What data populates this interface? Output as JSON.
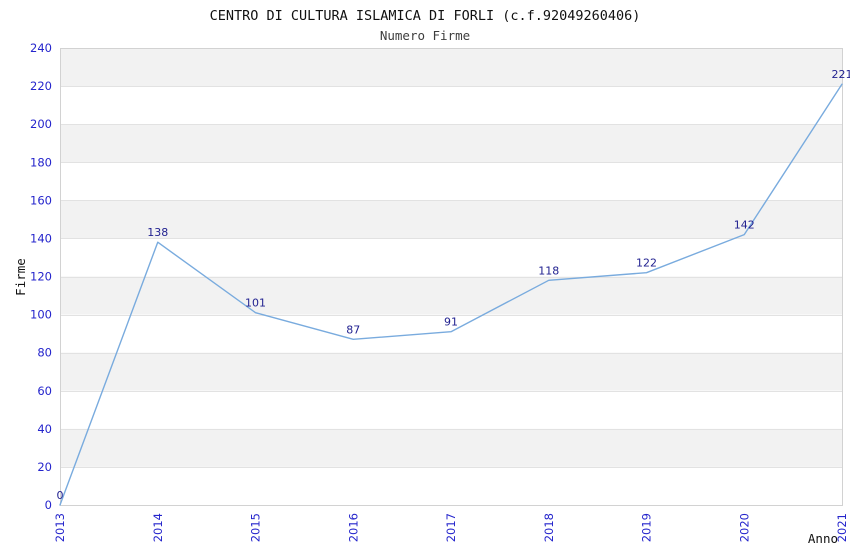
{
  "page": {
    "background": "#ffffff"
  },
  "chart_data": {
    "type": "line",
    "title": "CENTRO DI CULTURA ISLAMICA DI FORLI (c.f.92049260406)",
    "subtitle": "Numero Firme",
    "xlabel": "Anno",
    "ylabel": "Firme",
    "categories": [
      "2013",
      "2014",
      "2015",
      "2016",
      "2017",
      "2018",
      "2019",
      "2020",
      "2021"
    ],
    "values": [
      0,
      138,
      101,
      87,
      91,
      118,
      122,
      142,
      221
    ],
    "data_labels": [
      "0",
      "138",
      "101",
      "87",
      "91",
      "118",
      "122",
      "142",
      "221"
    ],
    "ylim": [
      0,
      240
    ],
    "ytick_step": 20,
    "ytick_labels": [
      "0",
      "20",
      "40",
      "60",
      "80",
      "100",
      "120",
      "140",
      "160",
      "180",
      "200",
      "220",
      "240"
    ],
    "grid": "horizontal-bands-alternating",
    "legend_position": "none",
    "colors": {
      "line": "#79abde",
      "tick_label": "#2525cc",
      "data_label": "#1f1f8f",
      "band_gray": "#f2f2f2",
      "band_white": "#ffffff",
      "grid_line": "#e2e2e2",
      "plot_border": "#d2d2d2",
      "title": "#111111"
    }
  }
}
